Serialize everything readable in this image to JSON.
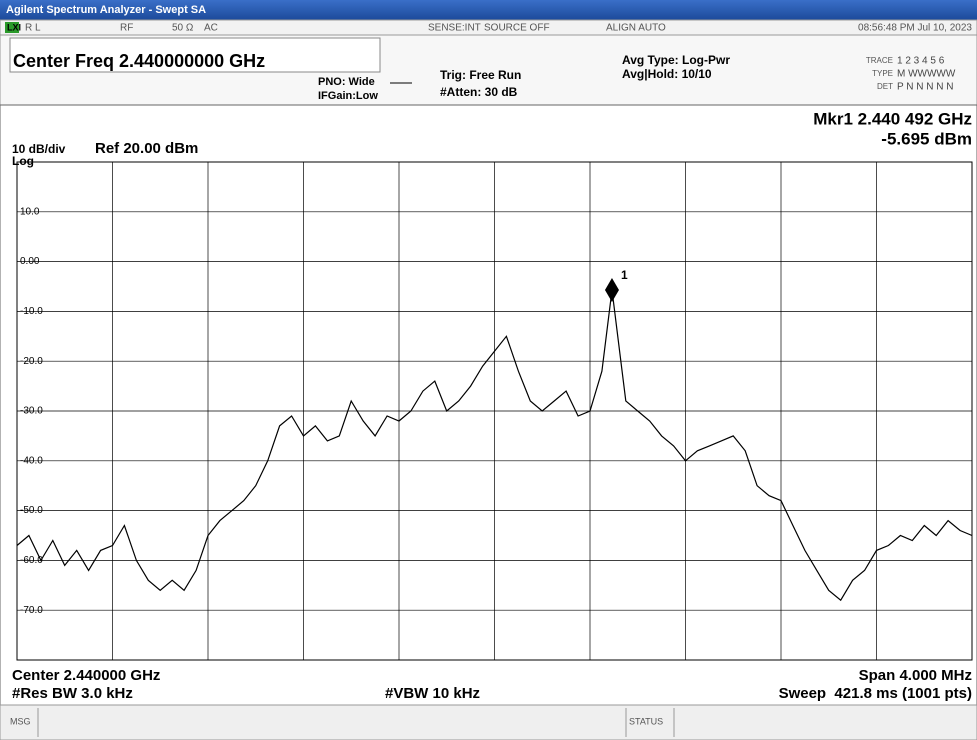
{
  "window": {
    "title": "Agilent Spectrum Analyzer - Swept SA"
  },
  "status_bar": {
    "lxi": "LXI",
    "rl": "R L",
    "rf": "RF",
    "impedance": "50 Ω",
    "coupling": "AC",
    "sense": "SENSE:INT",
    "source": "SOURCE OFF",
    "align": "ALIGN AUTO",
    "time": "08:56:48 PM Jul 10, 2023"
  },
  "header": {
    "center_freq": "Center Freq 2.440000000 GHz",
    "pno": "PNO: Wide",
    "ifgain": "IFGain:Low",
    "trig": "Trig: Free Run",
    "atten": "#Atten: 30 dB",
    "avg_type": "Avg Type: Log-Pwr",
    "avg_hold": "Avg|Hold: 10/10",
    "trace": "TRACE",
    "trace_nums": "1 2 3 4 5 6",
    "type": "TYPE",
    "type_vals": "M WWWWW",
    "det": "DET",
    "det_vals": "P N N N N N"
  },
  "chart_data": {
    "type": "line",
    "scale_label": "10 dB/div",
    "log_label": "Log",
    "ref_label": "Ref 20.00 dBm",
    "marker_readout": [
      "Mkr1 2.440 492 GHz",
      "-5.695 dBm"
    ],
    "x": [
      2.438,
      2.43805,
      2.4381,
      2.43815,
      2.4382,
      2.43825,
      2.4383,
      2.43835,
      2.4384,
      2.43845,
      2.4385,
      2.43855,
      2.4386,
      2.43865,
      2.4387,
      2.43875,
      2.4388,
      2.43885,
      2.4389,
      2.43895,
      2.439,
      2.43905,
      2.4391,
      2.43915,
      2.4392,
      2.43925,
      2.4393,
      2.43935,
      2.4394,
      2.43945,
      2.4395,
      2.43955,
      2.4396,
      2.43965,
      2.4397,
      2.43975,
      2.4398,
      2.43985,
      2.4399,
      2.43995,
      2.44,
      2.44005,
      2.4401,
      2.44015,
      2.4402,
      2.44025,
      2.4403,
      2.44035,
      2.4404,
      2.44045,
      2.440492,
      2.44055,
      2.4406,
      2.44065,
      2.4407,
      2.44075,
      2.4408,
      2.44085,
      2.4409,
      2.44095,
      2.441,
      2.44105,
      2.4411,
      2.44115,
      2.4412,
      2.44125,
      2.4413,
      2.44135,
      2.4414,
      2.44145,
      2.4415,
      2.44155,
      2.4416,
      2.44165,
      2.4417,
      2.44175,
      2.4418,
      2.44185,
      2.4419,
      2.44195,
      2.442
    ],
    "series": [
      {
        "color": "#000000",
        "values": [
          -57,
          -55,
          -60,
          -56,
          -61,
          -58,
          -62,
          -58,
          -57,
          -53,
          -60,
          -64,
          -66,
          -64,
          -66,
          -62,
          -55,
          -52,
          -50,
          -48,
          -45,
          -40,
          -33,
          -31,
          -35,
          -33,
          -36,
          -35,
          -28,
          -32,
          -35,
          -31,
          -32,
          -30,
          -26,
          -24,
          -30,
          -28,
          -25,
          -21,
          -18,
          -15,
          -22,
          -28,
          -30,
          -28,
          -26,
          -31,
          -30,
          -22,
          -5.695,
          -28,
          -30,
          -32,
          -35,
          -37,
          -40,
          -38,
          -37,
          -36,
          -35,
          -38,
          -45,
          -47,
          -48,
          -53,
          -58,
          -62,
          -66,
          -68,
          -64,
          -62,
          -58,
          -57,
          -55,
          -56,
          -53,
          -55,
          -52,
          -54,
          -55
        ]
      }
    ],
    "xlim": [
      2.438,
      2.442
    ],
    "ylim": [
      -80,
      20
    ],
    "yticks": [
      {
        "value": 10,
        "label": "10.0"
      },
      {
        "value": 0,
        "label": "0.00"
      },
      {
        "value": -10,
        "label": "-10.0"
      },
      {
        "value": -20,
        "label": "-20.0"
      },
      {
        "value": -30,
        "label": "-30.0"
      },
      {
        "value": -40,
        "label": "-40.0"
      },
      {
        "value": -50,
        "label": "-50.0"
      },
      {
        "value": -60,
        "label": "-60.0"
      },
      {
        "value": -70,
        "label": "-70.0"
      }
    ],
    "grid": true,
    "marker": {
      "label": "1",
      "x": 2.440492,
      "y": -5.695
    },
    "footer": {
      "center": "Center 2.440000 GHz",
      "span": "Span 4.000 MHz",
      "rbw": "#Res BW 3.0 kHz",
      "vbw": "#VBW 10 kHz",
      "sweep": "Sweep  421.8 ms (1001 pts)"
    }
  },
  "message_bar": {
    "msg": "MSG",
    "status": "STATUS"
  }
}
